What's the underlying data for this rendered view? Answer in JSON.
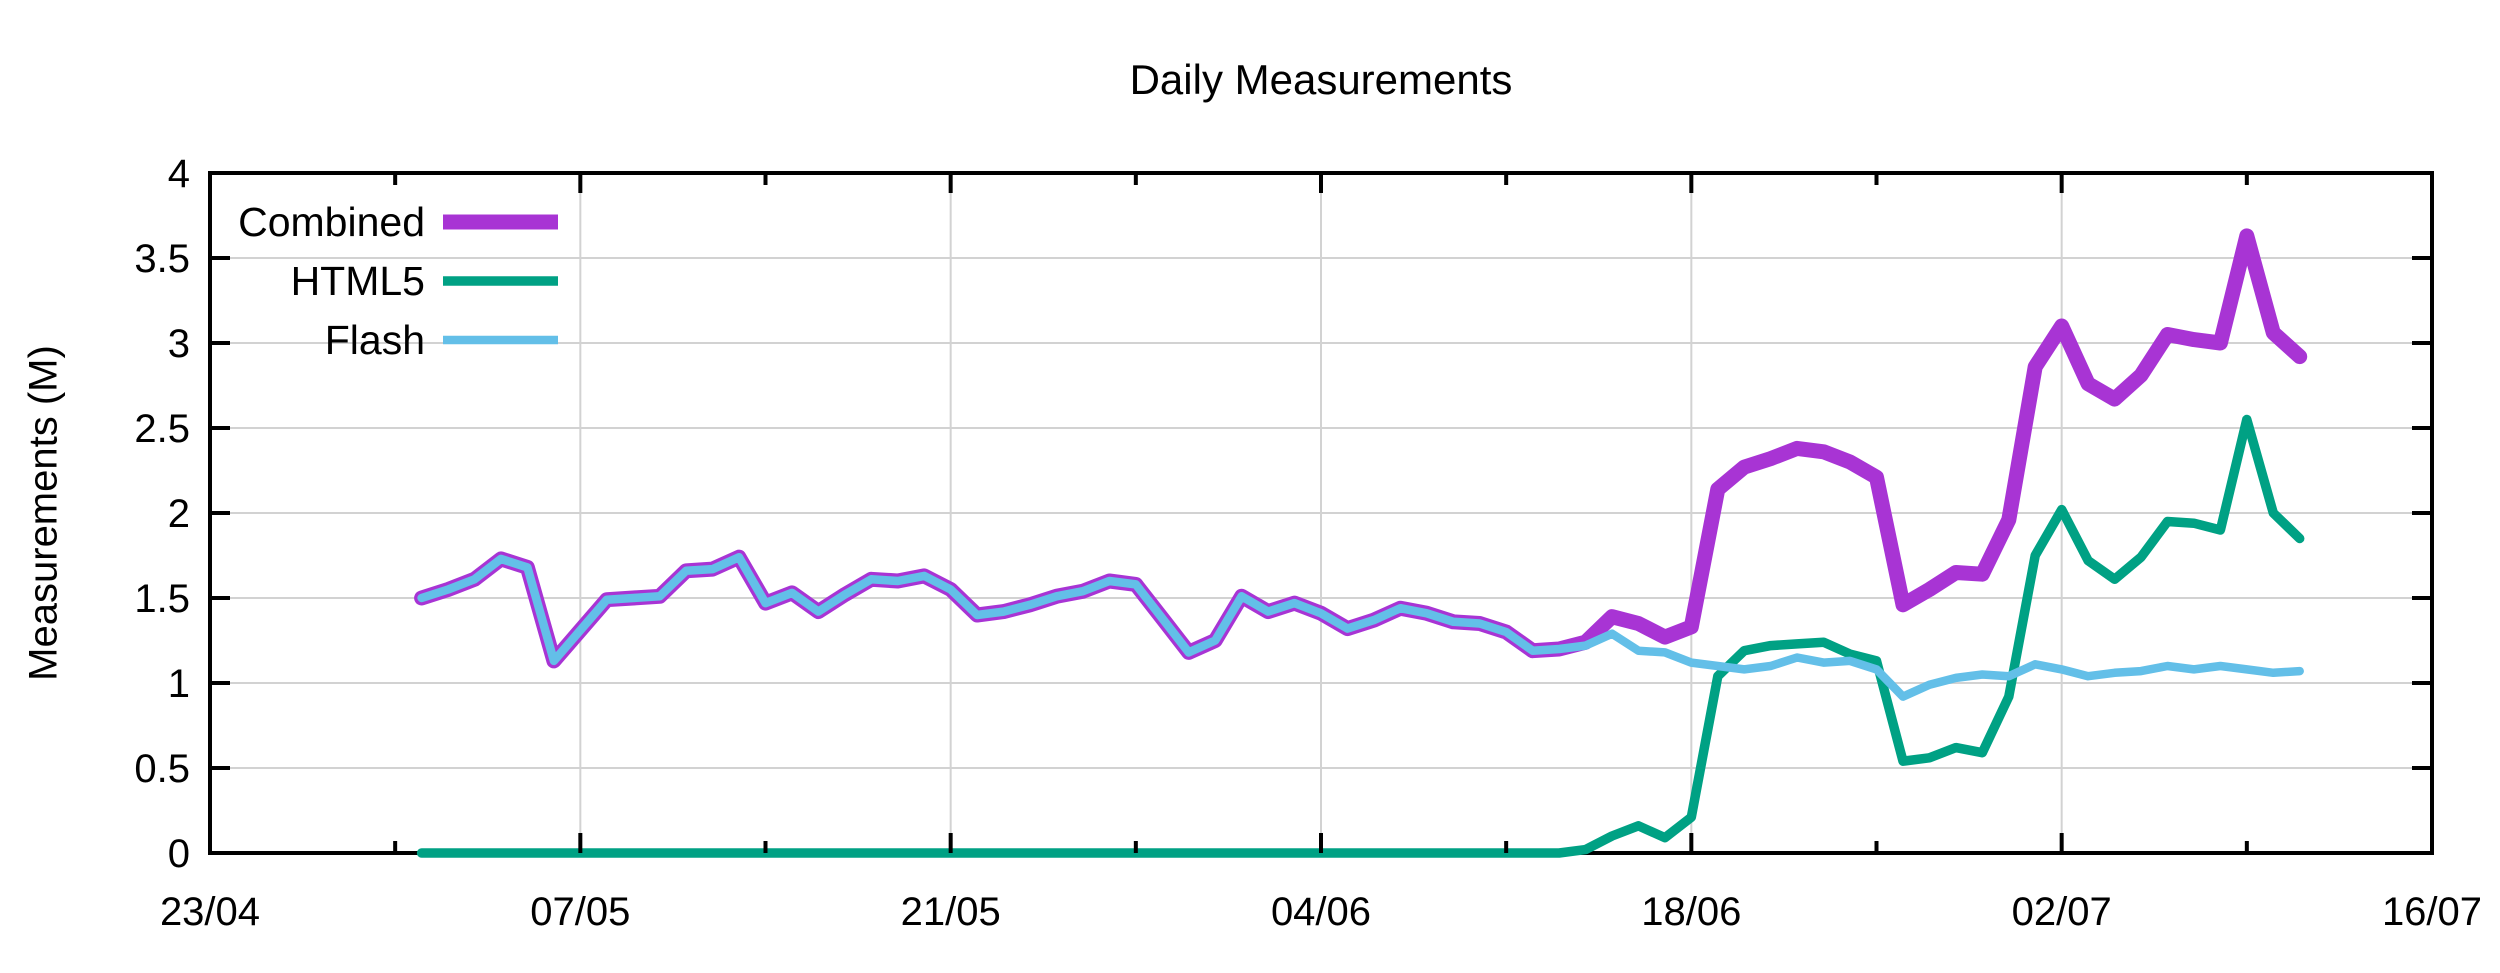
{
  "chart_data": {
    "type": "line",
    "title": "Daily Measurements",
    "ylabel": "Measurements (M)",
    "xlabel": "",
    "background": "#ffffff",
    "grid": true,
    "grid_color": "#d2d2d2",
    "axis_color": "#000000",
    "legend_position": "top-left",
    "ylim": [
      0,
      4
    ],
    "y_ticks": [
      0,
      0.5,
      1,
      1.5,
      2,
      2.5,
      3,
      3.5,
      4
    ],
    "y_tick_labels": [
      "0",
      "0.5",
      "1",
      "1.5",
      "2",
      "2.5",
      "3",
      "3.5",
      "4"
    ],
    "x_days_range": [
      0,
      84
    ],
    "x_major_ticks": [
      {
        "day": 0,
        "label": "23/04"
      },
      {
        "day": 14,
        "label": "07/05"
      },
      {
        "day": 28,
        "label": "21/05"
      },
      {
        "day": 42,
        "label": "04/06"
      },
      {
        "day": 56,
        "label": "18/06"
      },
      {
        "day": 70,
        "label": "02/07"
      },
      {
        "day": 84,
        "label": "16/07"
      }
    ],
    "x_minor_tick_days": [
      7,
      21,
      35,
      49,
      63,
      77
    ],
    "series_start_day": 8,
    "series_day_step": 1,
    "series": [
      {
        "name": "Combined",
        "color": "#a834d4",
        "stroke_width": 15,
        "values": [
          1.5,
          1.55,
          1.61,
          1.73,
          1.68,
          1.13,
          1.31,
          1.49,
          1.5,
          1.51,
          1.66,
          1.67,
          1.74,
          1.47,
          1.53,
          1.42,
          1.52,
          1.61,
          1.6,
          1.63,
          1.55,
          1.4,
          1.42,
          1.46,
          1.51,
          1.54,
          1.6,
          1.58,
          1.38,
          1.18,
          1.25,
          1.51,
          1.42,
          1.47,
          1.41,
          1.32,
          1.37,
          1.44,
          1.41,
          1.36,
          1.35,
          1.3,
          1.19,
          1.2,
          1.24,
          1.39,
          1.35,
          1.27,
          1.33,
          2.14,
          2.27,
          2.32,
          2.38,
          2.36,
          2.3,
          2.21,
          1.46,
          1.55,
          1.65,
          1.64,
          1.96,
          2.86,
          3.1,
          2.76,
          2.67,
          2.81,
          3.05,
          3.02,
          3.0,
          3.63,
          3.06,
          2.92
        ]
      },
      {
        "name": "HTML5",
        "color": "#00a184",
        "stroke_width": 9.5,
        "values": [
          0,
          0,
          0,
          0,
          0,
          0,
          0,
          0,
          0,
          0,
          0,
          0,
          0,
          0,
          0,
          0,
          0,
          0,
          0,
          0,
          0,
          0,
          0,
          0,
          0,
          0,
          0,
          0,
          0,
          0,
          0,
          0,
          0,
          0,
          0,
          0,
          0,
          0,
          0,
          0,
          0,
          0,
          0,
          0,
          0.02,
          0.1,
          0.16,
          0.09,
          0.21,
          1.04,
          1.19,
          1.22,
          1.23,
          1.24,
          1.17,
          1.13,
          0.54,
          0.56,
          0.62,
          0.59,
          0.92,
          1.75,
          2.02,
          1.72,
          1.61,
          1.74,
          1.95,
          1.94,
          1.9,
          2.55,
          2.0,
          1.85
        ]
      },
      {
        "name": "Flash",
        "color": "#63bfe8",
        "stroke_width": 8.5,
        "values": [
          1.5,
          1.55,
          1.61,
          1.73,
          1.68,
          1.13,
          1.31,
          1.49,
          1.5,
          1.51,
          1.66,
          1.67,
          1.74,
          1.47,
          1.53,
          1.42,
          1.52,
          1.61,
          1.6,
          1.63,
          1.55,
          1.4,
          1.42,
          1.46,
          1.51,
          1.54,
          1.6,
          1.58,
          1.38,
          1.18,
          1.25,
          1.51,
          1.42,
          1.47,
          1.41,
          1.32,
          1.37,
          1.44,
          1.41,
          1.36,
          1.35,
          1.3,
          1.19,
          1.2,
          1.22,
          1.29,
          1.19,
          1.18,
          1.12,
          1.1,
          1.08,
          1.1,
          1.15,
          1.12,
          1.13,
          1.08,
          0.92,
          0.99,
          1.03,
          1.05,
          1.04,
          1.11,
          1.08,
          1.04,
          1.06,
          1.07,
          1.1,
          1.08,
          1.1,
          1.08,
          1.06,
          1.07
        ]
      }
    ]
  }
}
